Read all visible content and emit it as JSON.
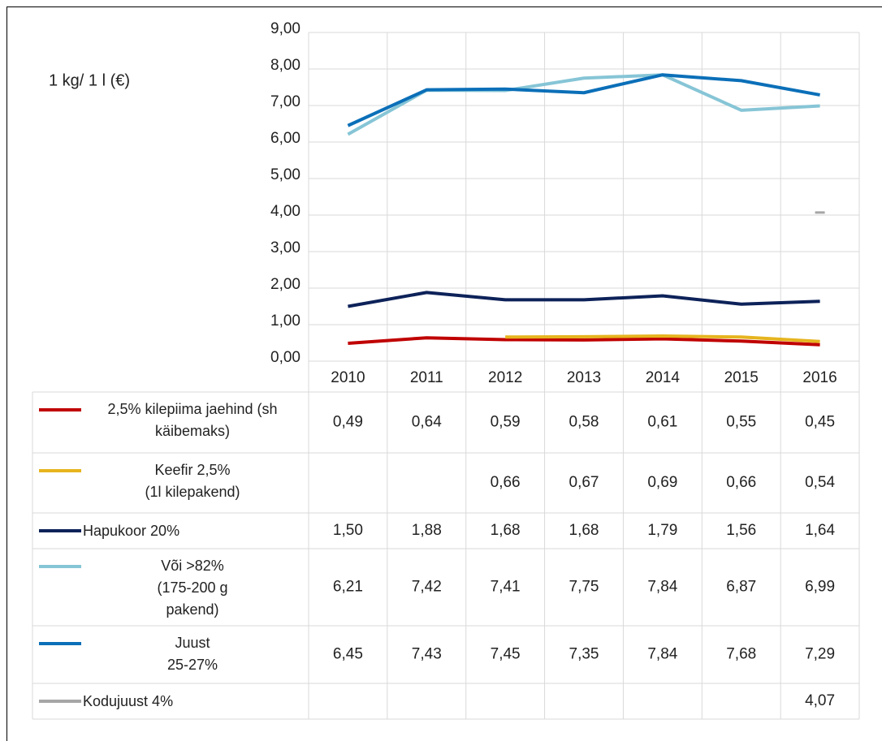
{
  "chart_data": {
    "type": "line",
    "y_label": "1 kg/ 1 l (€)",
    "categories": [
      "2010",
      "2011",
      "2012",
      "2013",
      "2014",
      "2015",
      "2016"
    ],
    "ylim": [
      0,
      9
    ],
    "yticks": [
      {
        "value": 0,
        "label": "0,00"
      },
      {
        "value": 1,
        "label": "1,00"
      },
      {
        "value": 2,
        "label": "2,00"
      },
      {
        "value": 3,
        "label": "3,00"
      },
      {
        "value": 4,
        "label": "4,00"
      },
      {
        "value": 5,
        "label": "5,00"
      },
      {
        "value": 6,
        "label": "6,00"
      },
      {
        "value": 7,
        "label": "7,00"
      },
      {
        "value": 8,
        "label": "8,00"
      },
      {
        "value": 9,
        "label": "9,00"
      }
    ],
    "grid": true,
    "series": [
      {
        "name": "2,5% kilepiima jaehind (sh\nkäibemaks)",
        "color": "#c00000",
        "values": [
          0.49,
          0.64,
          0.59,
          0.58,
          0.61,
          0.55,
          0.45
        ],
        "value_labels": [
          "0,49",
          "0,64",
          "0,59",
          "0,58",
          "0,61",
          "0,55",
          "0,45"
        ]
      },
      {
        "name": "Keefir 2,5%\n(1l kilepakend)",
        "color": "#e6b41e",
        "values": [
          null,
          null,
          0.66,
          0.67,
          0.69,
          0.66,
          0.54
        ],
        "value_labels": [
          null,
          null,
          "0,66",
          "0,67",
          "0,69",
          "0,66",
          "0,54"
        ]
      },
      {
        "name": "Hapukoor 20%",
        "color": "#0d2259",
        "values": [
          1.5,
          1.88,
          1.68,
          1.68,
          1.79,
          1.56,
          1.64
        ],
        "value_labels": [
          "1,50",
          "1,88",
          "1,68",
          "1,68",
          "1,79",
          "1,56",
          "1,64"
        ]
      },
      {
        "name": "Või >82%\n(175-200 g\npakend)",
        "color": "#86c5d6",
        "values": [
          6.21,
          7.42,
          7.41,
          7.75,
          7.84,
          6.87,
          6.99
        ],
        "value_labels": [
          "6,21",
          "7,42",
          "7,41",
          "7,75",
          "7,84",
          "6,87",
          "6,99"
        ]
      },
      {
        "name": "Juust\n25-27%",
        "color": "#0b6fb8",
        "values": [
          6.45,
          7.43,
          7.45,
          7.35,
          7.84,
          7.68,
          7.29
        ],
        "value_labels": [
          "6,45",
          "7,43",
          "7,45",
          "7,35",
          "7,84",
          "7,68",
          "7,29"
        ]
      },
      {
        "name": "Kodujuust 4%",
        "color": "#a6a6a6",
        "values": [
          null,
          null,
          null,
          null,
          null,
          null,
          4.07
        ],
        "value_labels": [
          null,
          null,
          null,
          null,
          null,
          null,
          "4,07"
        ]
      }
    ]
  }
}
